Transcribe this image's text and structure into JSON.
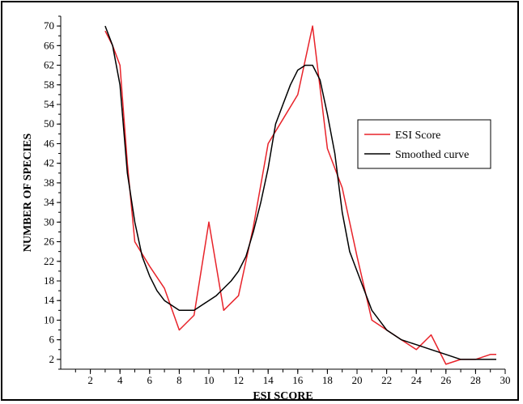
{
  "chart_data": {
    "type": "line",
    "title": "",
    "xlabel": "ESI SCORE",
    "ylabel": "NUMBER OF SPECIES",
    "xlim": [
      0,
      30
    ],
    "ylim": [
      0,
      72
    ],
    "x_ticks": [
      2,
      4,
      6,
      8,
      10,
      12,
      14,
      16,
      18,
      20,
      22,
      24,
      26,
      28,
      30
    ],
    "y_ticks": [
      2,
      6,
      10,
      14,
      18,
      22,
      26,
      30,
      34,
      38,
      42,
      46,
      50,
      54,
      58,
      62,
      66,
      70
    ],
    "grid": false,
    "legend_position": "right",
    "series": [
      {
        "name": "ESI Score",
        "color": "#e8232a",
        "x": [
          3,
          3.5,
          4,
          4.5,
          5,
          6,
          7,
          8,
          9,
          10,
          11,
          12,
          13,
          14,
          15,
          16,
          17,
          18,
          19,
          20,
          21,
          22,
          23,
          24,
          25,
          26,
          27,
          28,
          29,
          29.4
        ],
        "y": [
          69,
          66,
          62,
          42,
          26,
          21,
          16.5,
          8,
          11,
          30,
          12,
          15,
          29,
          46,
          51,
          56,
          70,
          45,
          37,
          23,
          10,
          8,
          6,
          4,
          7,
          1,
          2,
          2,
          3,
          3
        ]
      },
      {
        "name": "Smoothed curve",
        "color": "#000000",
        "x": [
          3,
          3.5,
          4,
          4.5,
          5,
          5.5,
          6,
          6.5,
          7,
          7.5,
          8,
          8.5,
          9,
          9.5,
          10,
          10.5,
          11,
          11.5,
          12,
          12.5,
          13,
          13.5,
          14,
          14.5,
          15,
          15.5,
          16,
          16.5,
          17,
          17.5,
          18,
          18.5,
          19,
          19.5,
          20,
          21,
          22,
          23,
          24,
          25,
          26,
          27,
          28,
          29,
          29.4
        ],
        "y": [
          70,
          66,
          58,
          40,
          30,
          23,
          19,
          16,
          14,
          13,
          12,
          12,
          12,
          13,
          14,
          15,
          16.5,
          18,
          20,
          23,
          28,
          34,
          41,
          50,
          54,
          58,
          61,
          62,
          62,
          59,
          52,
          44,
          32,
          24,
          20,
          12,
          8,
          6,
          5,
          4,
          3,
          2,
          2,
          2,
          2
        ]
      }
    ]
  }
}
